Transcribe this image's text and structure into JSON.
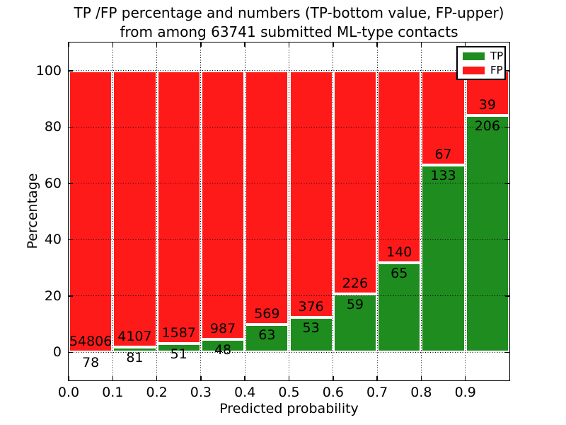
{
  "chart_data": {
    "type": "bar",
    "stacked": true,
    "normalized_to_percent": true,
    "title": "TP /FP percentage and numbers (TP-bottom value, FP-upper) from among 63741 submitted ML-type contacts",
    "title_lines": [
      "TP /FP percentage and numbers (TP-bottom value, FP-upper)",
      "from among 63741 submitted ML-type contacts"
    ],
    "total_submitted": 63741,
    "xlabel": "Predicted probability",
    "ylabel": "Percentage",
    "xlim": [
      0.0,
      1.0
    ],
    "ylim": [
      -10,
      110
    ],
    "grid": "dotted",
    "x_tick_labels": [
      "0.0",
      "0.1",
      "0.2",
      "0.3",
      "0.4",
      "0.5",
      "0.6",
      "0.7",
      "0.8",
      "0.9"
    ],
    "y_ticks": [
      0,
      20,
      40,
      60,
      80,
      100
    ],
    "legend": {
      "position": "upper-right",
      "entries": [
        {
          "label": "TP",
          "color": "#1e8c1e"
        },
        {
          "label": "FP",
          "color": "#ff1a1a"
        }
      ]
    },
    "bins": [
      {
        "x_range": [
          0.0,
          0.1
        ],
        "tp": 78,
        "fp": 54806
      },
      {
        "x_range": [
          0.1,
          0.2
        ],
        "tp": 81,
        "fp": 4107
      },
      {
        "x_range": [
          0.2,
          0.3
        ],
        "tp": 51,
        "fp": 1587
      },
      {
        "x_range": [
          0.3,
          0.4
        ],
        "tp": 48,
        "fp": 987
      },
      {
        "x_range": [
          0.4,
          0.5
        ],
        "tp": 63,
        "fp": 569
      },
      {
        "x_range": [
          0.5,
          0.6
        ],
        "tp": 53,
        "fp": 376
      },
      {
        "x_range": [
          0.6,
          0.7
        ],
        "tp": 59,
        "fp": 226
      },
      {
        "x_range": [
          0.7,
          0.8
        ],
        "tp": 65,
        "fp": 140
      },
      {
        "x_range": [
          0.8,
          0.9
        ],
        "tp": 133,
        "fp": 67
      },
      {
        "x_range": [
          0.9,
          1.0
        ],
        "tp": 206,
        "fp": 39
      }
    ]
  }
}
